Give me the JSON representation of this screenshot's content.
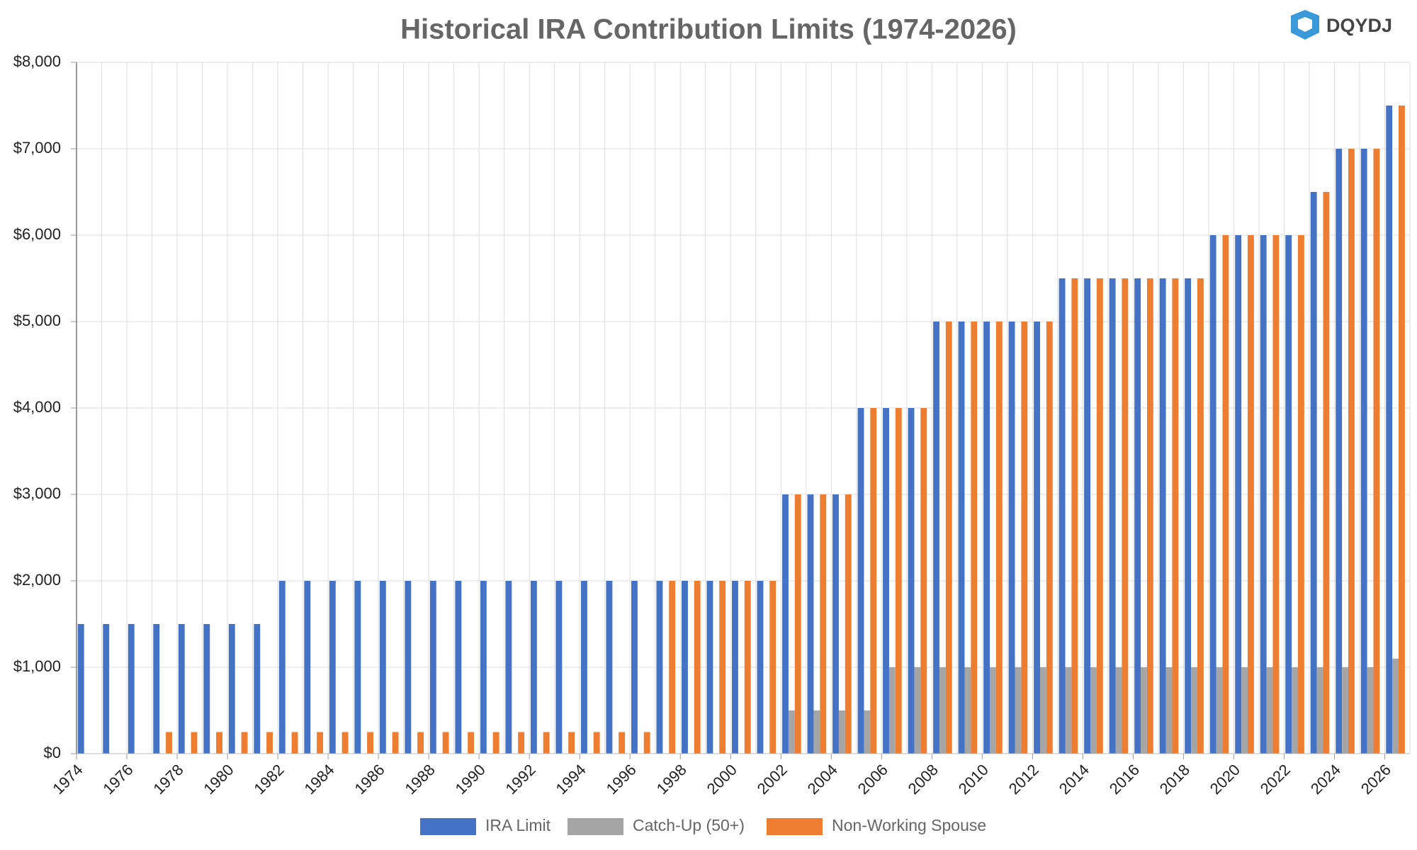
{
  "chart_data": {
    "type": "bar",
    "title": "Historical IRA Contribution Limits (1974-2026)",
    "logo": "DQYDJ",
    "categories": [
      "1974",
      null,
      "1976",
      null,
      "1978",
      null,
      "1980",
      null,
      "1982",
      null,
      "1984",
      null,
      "1986",
      null,
      "1988",
      null,
      "1990",
      null,
      "1992",
      null,
      "1994",
      null,
      "1996",
      null,
      "1998",
      null,
      "2000",
      null,
      "2002",
      null,
      "2004",
      null,
      "2006",
      null,
      "2008",
      null,
      "2010",
      null,
      "2012",
      null,
      "2014",
      null,
      "2016",
      null,
      "2018",
      null,
      "2020",
      null,
      "2022",
      null,
      "2024",
      null,
      "2026"
    ],
    "series": [
      {
        "name": "IRA Limit",
        "color": "#4472c4",
        "values": [
          1500,
          1500,
          1500,
          1500,
          1500,
          1500,
          1500,
          1500,
          2000,
          2000,
          2000,
          2000,
          2000,
          2000,
          2000,
          2000,
          2000,
          2000,
          2000,
          2000,
          2000,
          2000,
          2000,
          2000,
          2000,
          2000,
          2000,
          2000,
          3000,
          3000,
          3000,
          4000,
          4000,
          4000,
          5000,
          5000,
          5000,
          5000,
          5000,
          5500,
          5500,
          5500,
          5500,
          5500,
          5500,
          6000,
          6000,
          6000,
          6000,
          6500,
          7000,
          7000,
          7500
        ]
      },
      {
        "name": "Catch-Up (50+)",
        "color": "#a5a5a5",
        "values": [
          0,
          0,
          0,
          0,
          0,
          0,
          0,
          0,
          0,
          0,
          0,
          0,
          0,
          0,
          0,
          0,
          0,
          0,
          0,
          0,
          0,
          0,
          0,
          0,
          0,
          0,
          0,
          0,
          500,
          500,
          500,
          500,
          1000,
          1000,
          1000,
          1000,
          1000,
          1000,
          1000,
          1000,
          1000,
          1000,
          1000,
          1000,
          1000,
          1000,
          1000,
          1000,
          1000,
          1000,
          1000,
          1000,
          1100
        ]
      },
      {
        "name": "Non-Working Spouse",
        "color": "#ed7d31",
        "values": [
          0,
          0,
          0,
          250,
          250,
          250,
          250,
          250,
          250,
          250,
          250,
          250,
          250,
          250,
          250,
          250,
          250,
          250,
          250,
          250,
          250,
          250,
          250,
          2000,
          2000,
          2000,
          2000,
          2000,
          3000,
          3000,
          3000,
          4000,
          4000,
          4000,
          5000,
          5000,
          5000,
          5000,
          5000,
          5500,
          5500,
          5500,
          5500,
          5500,
          5500,
          6000,
          6000,
          6000,
          6000,
          6500,
          7000,
          7000,
          7500
        ]
      }
    ],
    "ylim": [
      0,
      8000
    ],
    "yticks": [
      {
        "value": 0,
        "label": "$0"
      },
      {
        "value": 1000,
        "label": "$1,000"
      },
      {
        "value": 2000,
        "label": "$2,000"
      },
      {
        "value": 3000,
        "label": "$3,000"
      },
      {
        "value": 4000,
        "label": "$4,000"
      },
      {
        "value": 5000,
        "label": "$5,000"
      },
      {
        "value": 6000,
        "label": "$6,000"
      },
      {
        "value": 7000,
        "label": "$7,000"
      },
      {
        "value": 8000,
        "label": "$8,000"
      }
    ],
    "grid": true,
    "legend": "bottom"
  }
}
